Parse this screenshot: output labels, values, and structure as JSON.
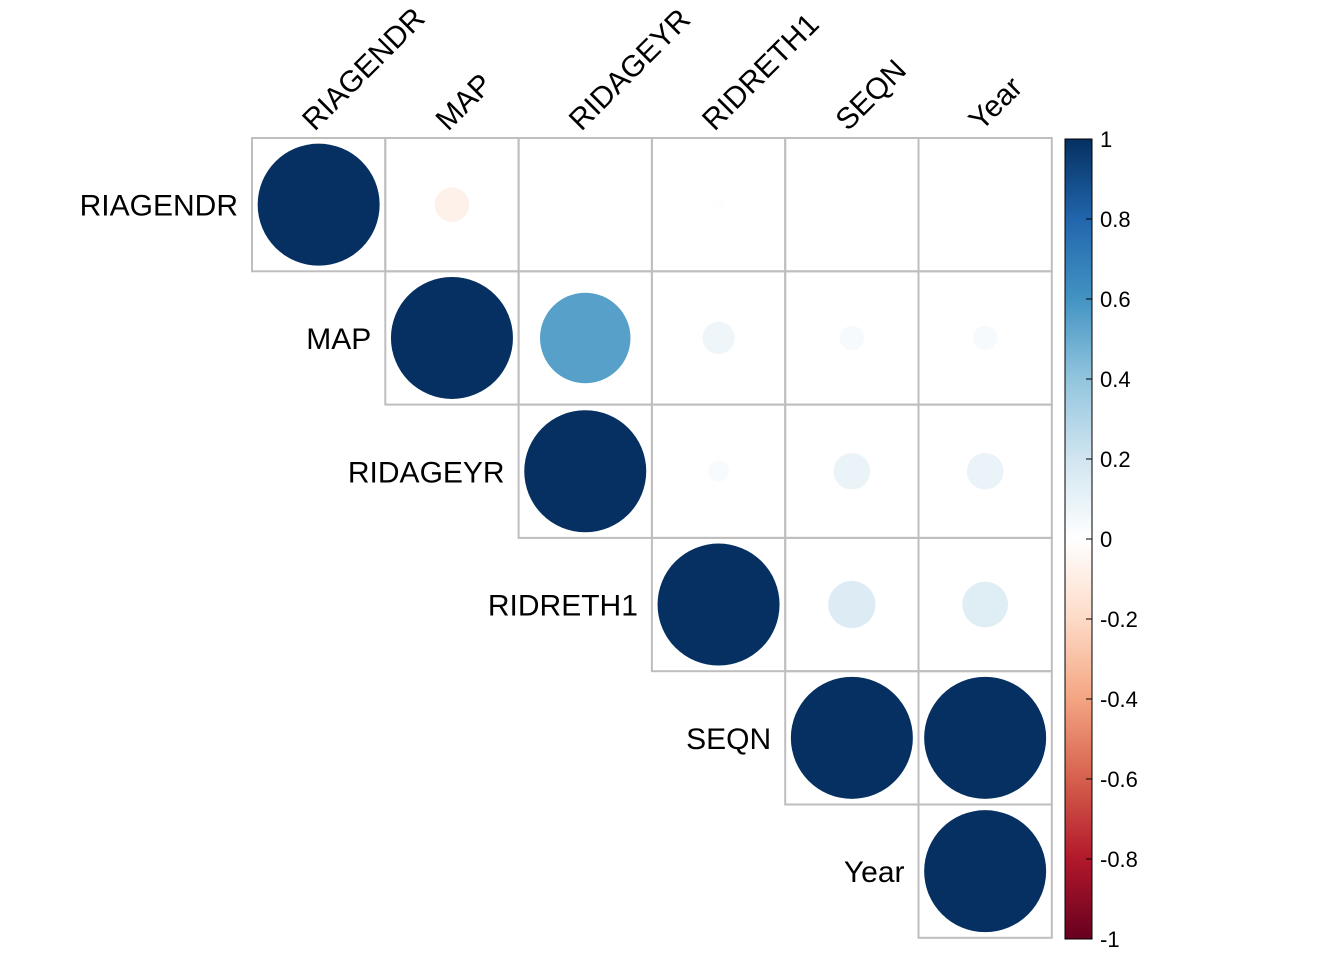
{
  "chart_data": {
    "type": "heatmap",
    "subtype": "correlation-circle-upper-triangle",
    "variables": [
      "RIAGENDR",
      "MAP",
      "RIDAGEYR",
      "RIDRETH1",
      "SEQN",
      "Year"
    ],
    "matrix": [
      [
        1.0,
        -0.08,
        0.0,
        0.01,
        0.0,
        0.0
      ],
      [
        null,
        1.0,
        0.55,
        0.07,
        0.04,
        0.04
      ],
      [
        null,
        null,
        1.0,
        0.03,
        0.09,
        0.09
      ],
      [
        null,
        null,
        null,
        1.0,
        0.15,
        0.14
      ],
      [
        null,
        null,
        null,
        null,
        1.0,
        1.0
      ],
      [
        null,
        null,
        null,
        null,
        null,
        1.0
      ]
    ],
    "color_scale": {
      "range": [
        -1,
        1
      ],
      "stops": [
        "#67001F",
        "#B2182B",
        "#D6604D",
        "#F4A582",
        "#FDDBC7",
        "#FFFFFF",
        "#D1E5F0",
        "#92C5DE",
        "#4393C3",
        "#2166AC",
        "#053061"
      ]
    },
    "legend": {
      "placement": "right",
      "ticks": [
        "1",
        "0.8",
        "0.6",
        "0.4",
        "0.2",
        "0",
        "-0.2",
        "-0.4",
        "-0.6",
        "-0.8",
        "-1"
      ],
      "tick_values": [
        1,
        0.8,
        0.6,
        0.4,
        0.2,
        0,
        -0.2,
        -0.4,
        -0.6,
        -0.8,
        -1
      ]
    },
    "grid": true
  }
}
